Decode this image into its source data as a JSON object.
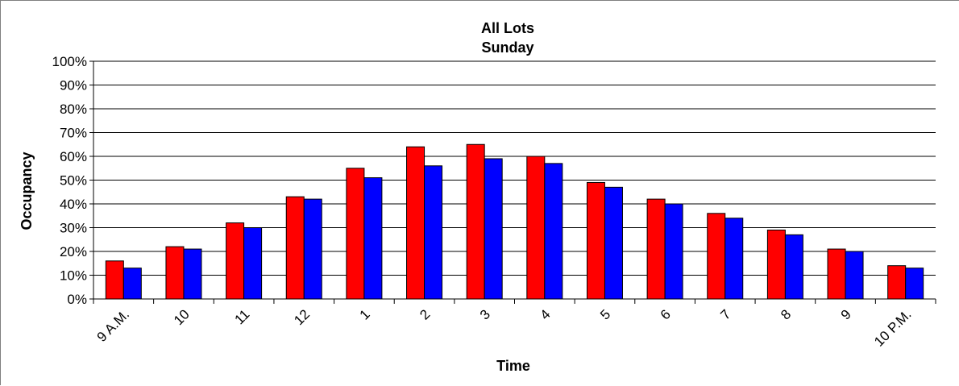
{
  "chart_data": {
    "type": "bar",
    "title": "All Lots",
    "subtitle": "Sunday",
    "xlabel": "Time",
    "ylabel": "Occupancy",
    "ylim": [
      0,
      100
    ],
    "yticks": [
      "0%",
      "10%",
      "20%",
      "30%",
      "40%",
      "50%",
      "60%",
      "70%",
      "80%",
      "90%",
      "100%"
    ],
    "grid": true,
    "legend": "none",
    "categories": [
      "9 A.M.",
      "10",
      "11",
      "12",
      "1",
      "2",
      "3",
      "4",
      "5",
      "6",
      "7",
      "8",
      "9",
      "10 P.M."
    ],
    "series": [
      {
        "color": "#ff0000",
        "values": [
          16,
          22,
          32,
          43,
          55,
          64,
          65,
          60,
          49,
          42,
          36,
          29,
          21,
          14
        ]
      },
      {
        "color": "#0000ff",
        "values": [
          13,
          21,
          30,
          42,
          51,
          56,
          59,
          57,
          47,
          40,
          34,
          27,
          20,
          13
        ]
      }
    ]
  }
}
